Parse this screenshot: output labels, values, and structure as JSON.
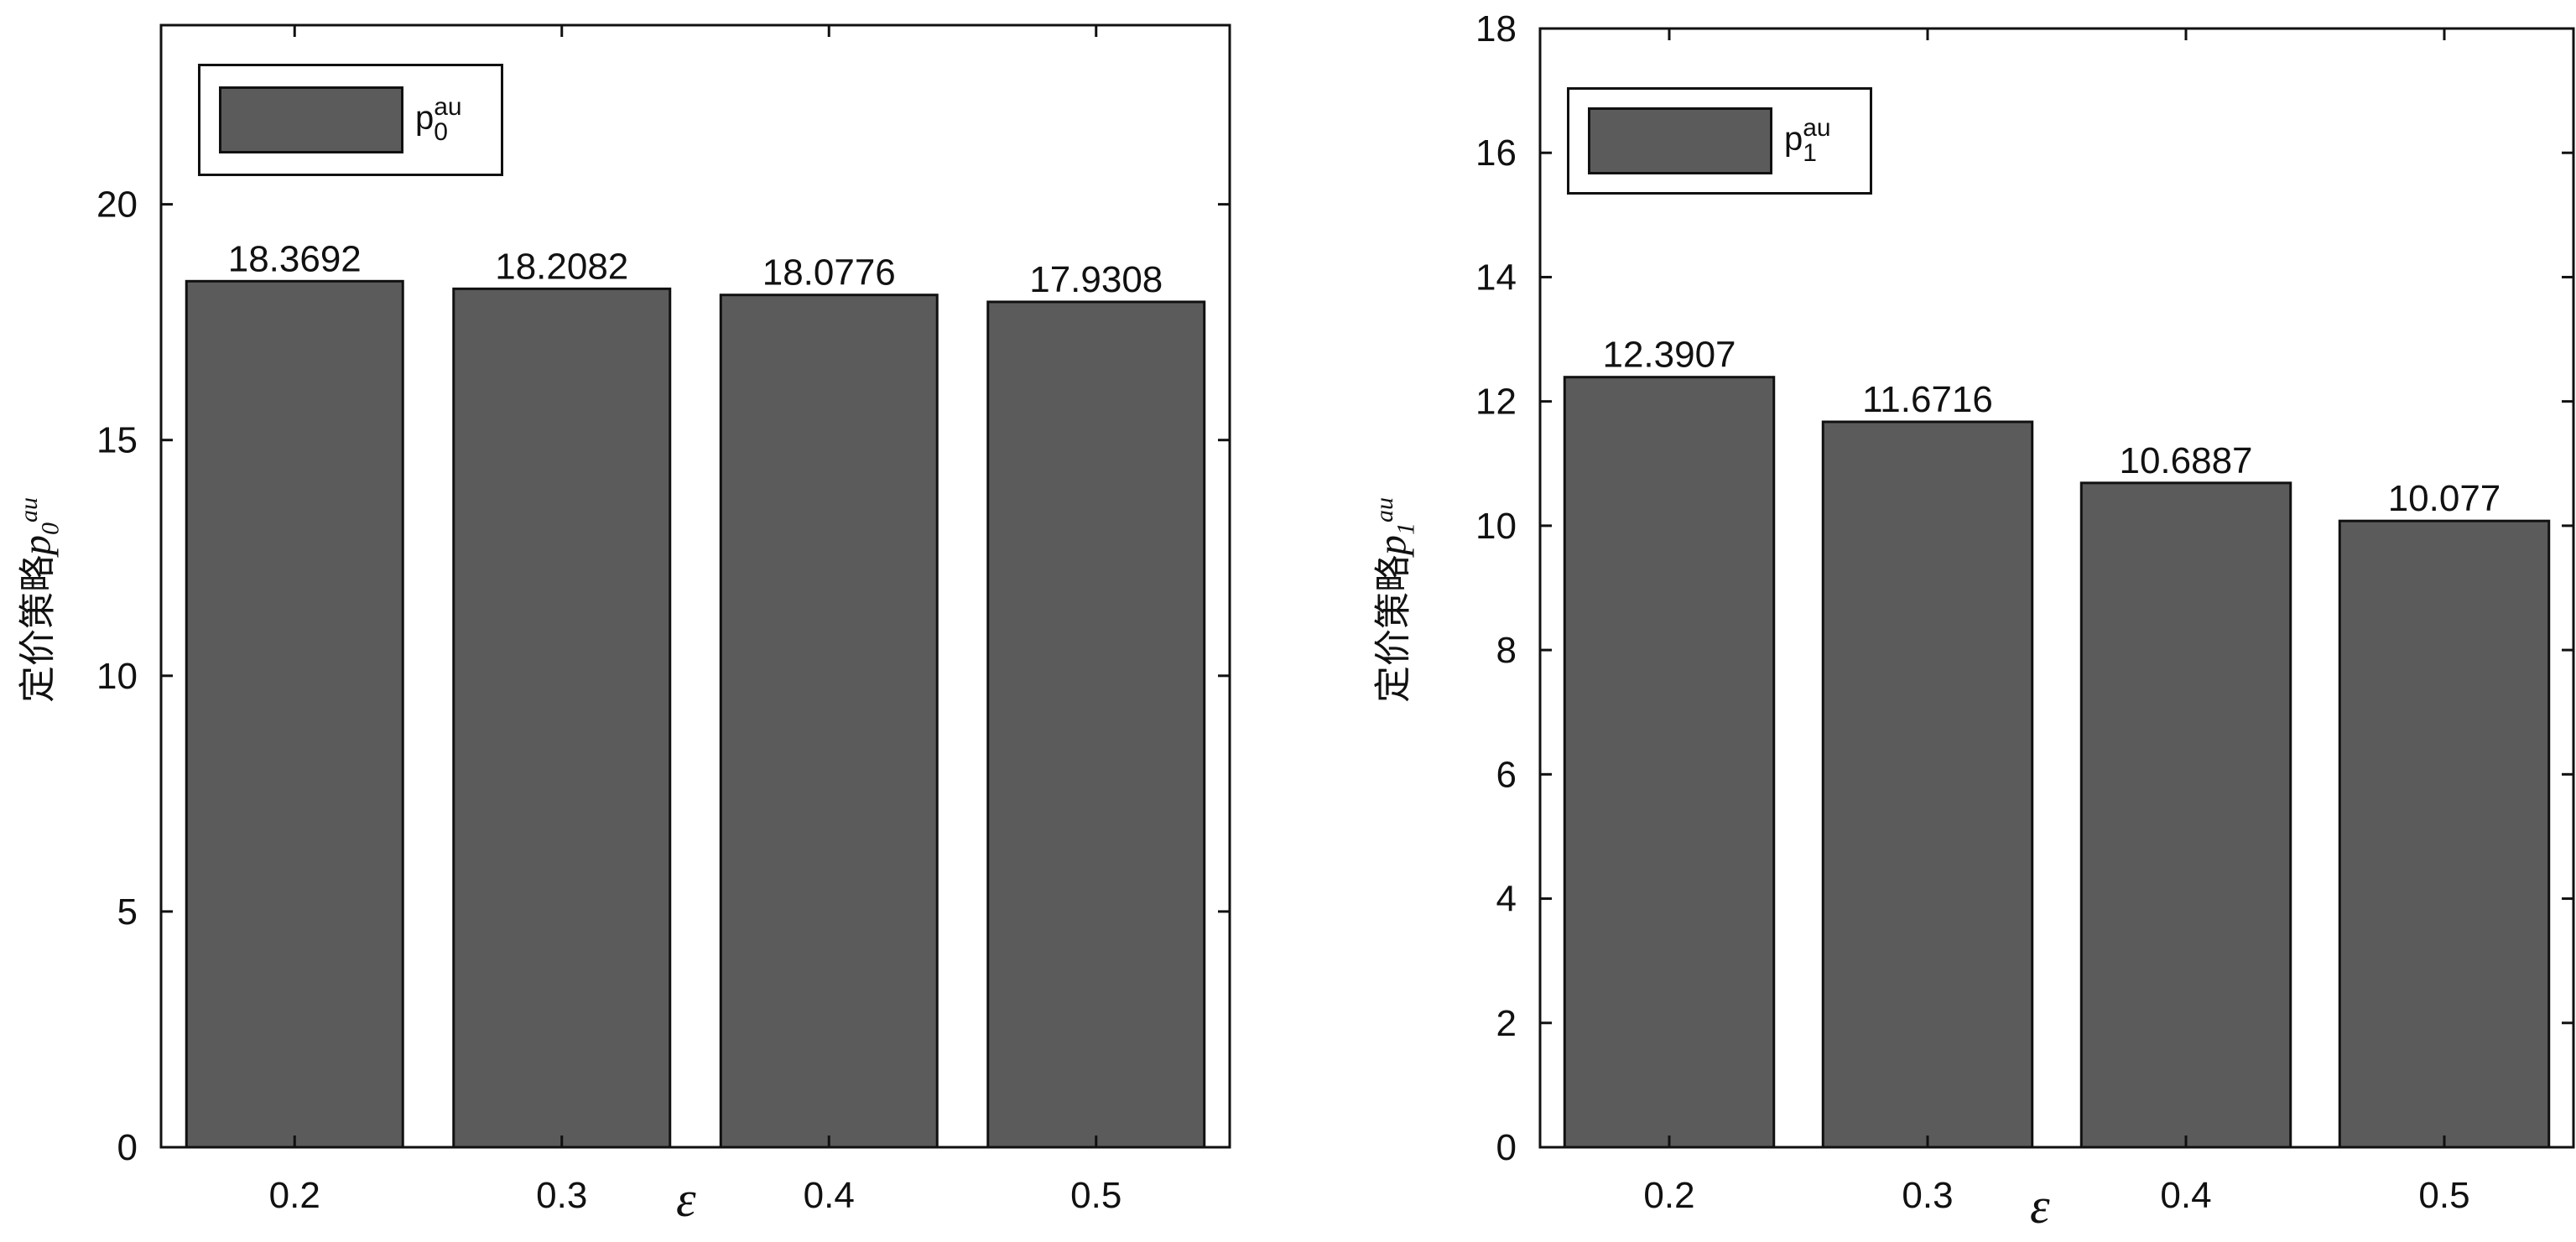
{
  "chart_data": [
    {
      "type": "bar",
      "categories": [
        "0.2",
        "0.3",
        "0.4",
        "0.5"
      ],
      "values": [
        18.3692,
        18.2082,
        18.0776,
        17.9308
      ],
      "data_labels": [
        "18.3692",
        "18.2082",
        "18.0776",
        "17.9308"
      ],
      "ylim": [
        0,
        23.8
      ],
      "yticks": [
        0,
        5,
        10,
        15,
        20
      ],
      "ylabel": {
        "text": "定价策略",
        "symbol": "p",
        "sub": "0",
        "sup": "au"
      },
      "xlabel": "ε",
      "legend": {
        "base": "p",
        "sup": "au",
        "sub": "0",
        "position": "top-left"
      },
      "bar_color": "#5b5b5b",
      "grid": false
    },
    {
      "type": "bar",
      "categories": [
        "0.2",
        "0.3",
        "0.4",
        "0.5"
      ],
      "values": [
        12.3907,
        11.6716,
        10.6887,
        10.077
      ],
      "data_labels": [
        "12.3907",
        "11.6716",
        "10.6887",
        "10.077"
      ],
      "ylim": [
        0,
        18
      ],
      "yticks": [
        0,
        2,
        4,
        6,
        8,
        10,
        12,
        14,
        16,
        18
      ],
      "ylabel": {
        "text": "定价策略",
        "symbol": "p",
        "sub": "1",
        "sup": "au"
      },
      "xlabel": "ε",
      "legend": {
        "base": "p",
        "sup": "au",
        "sub": "1",
        "position": "top-left"
      },
      "bar_color": "#5b5b5b",
      "grid": false
    }
  ]
}
